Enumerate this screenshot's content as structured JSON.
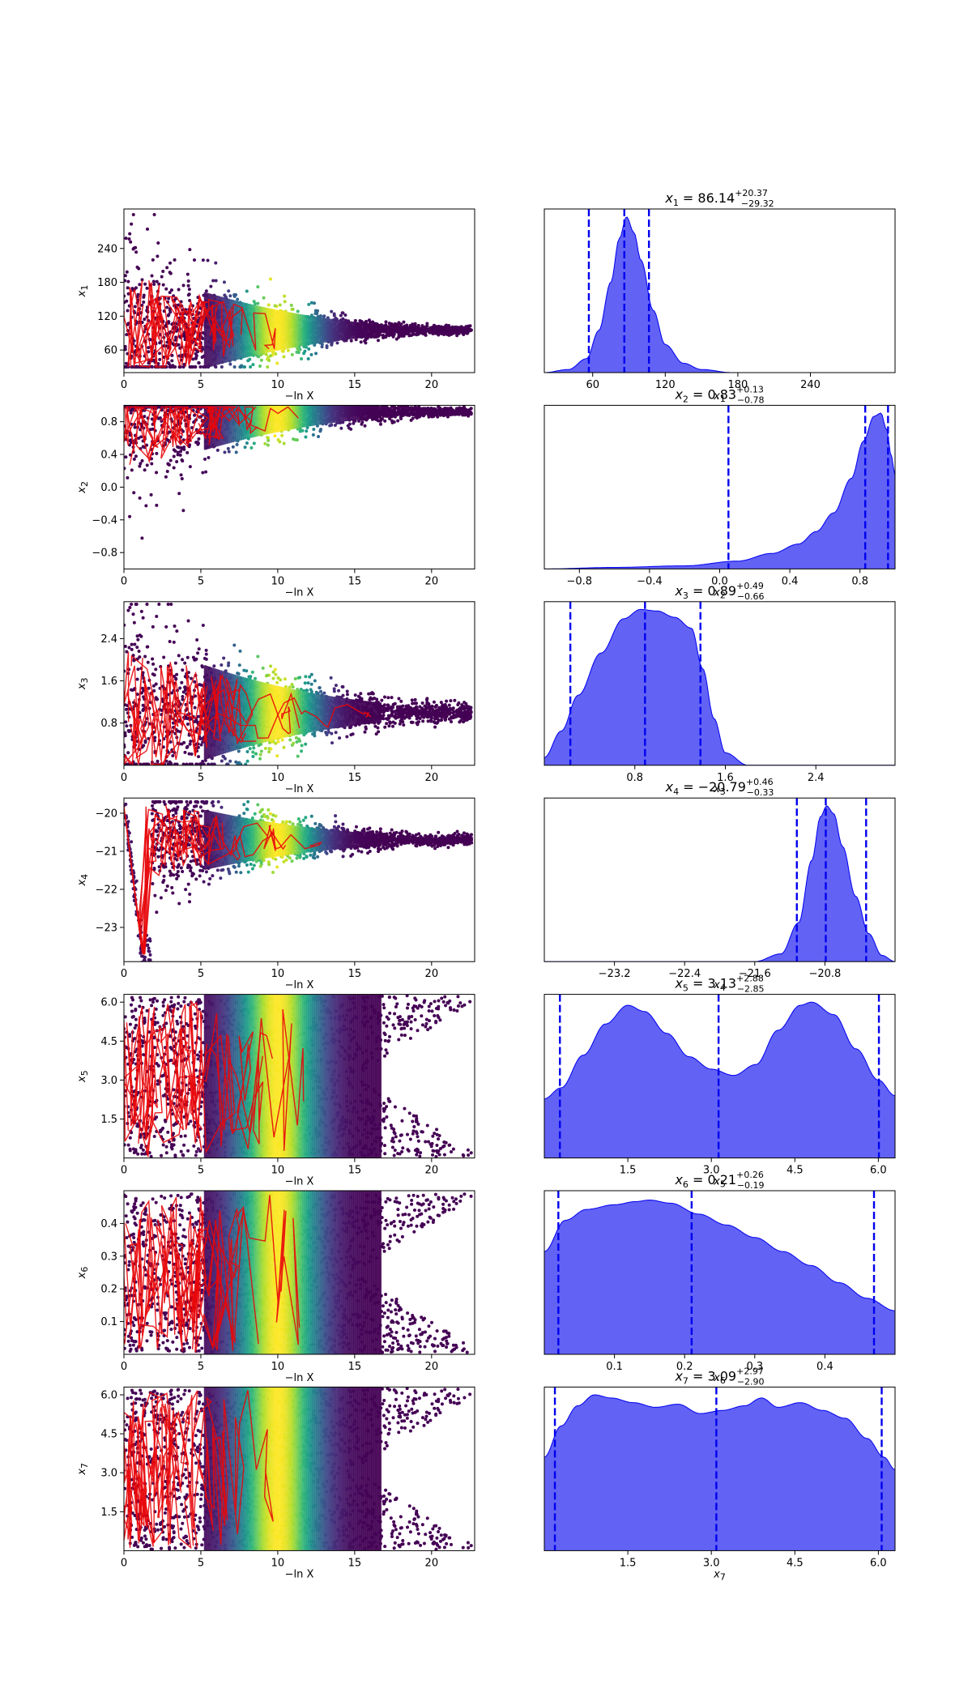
{
  "chart_data": [
    {
      "type": "scatter",
      "panel": "trace",
      "row": 1,
      "xlabel": "−ln X",
      "ylabel": "x1",
      "ylabel_base": "x",
      "ylabel_sub": "1",
      "xlim": [
        0,
        22.8
      ],
      "ylim": [
        20,
        310
      ],
      "xticks": [
        "0",
        "5",
        "10",
        "15",
        "20"
      ],
      "xtick_values": [
        0,
        5,
        10,
        15,
        20
      ],
      "yticks": [
        "60",
        "120",
        "180",
        "240"
      ],
      "ytick_values": [
        60,
        120,
        180,
        240
      ],
      "center": 95,
      "spread_start": 145,
      "spread_end": 6,
      "clip": [
        30,
        300
      ]
    },
    {
      "type": "area",
      "panel": "posterior",
      "row": 1,
      "param": "x1",
      "title": {
        "prefix": "x",
        "sub": "1",
        "eq": " = 86.14",
        "sup": "+20.37",
        "subscript": "−29.32"
      },
      "xlabel_base": "x",
      "xlabel_sub": "1",
      "xlim": [
        20,
        310
      ],
      "xticks": [
        "60",
        "120",
        "180",
        "240"
      ],
      "xtick_values": [
        60,
        120,
        180,
        240
      ],
      "median": 86.14,
      "quantiles": [
        56.82,
        86.14,
        106.51
      ],
      "density": {
        "x": [
          20,
          40,
          55,
          65,
          75,
          82,
          88,
          94,
          100,
          110,
          120,
          135,
          150,
          175,
          310
        ],
        "y": [
          0,
          0.02,
          0.09,
          0.27,
          0.58,
          0.86,
          1.0,
          0.9,
          0.72,
          0.4,
          0.18,
          0.06,
          0.02,
          0,
          0
        ]
      }
    },
    {
      "type": "scatter",
      "panel": "trace",
      "row": 2,
      "xlabel": "−ln X",
      "ylabel": "x2",
      "ylabel_base": "x",
      "ylabel_sub": "2",
      "xlim": [
        0,
        22.8
      ],
      "ylim": [
        -1,
        1
      ],
      "xticks": [
        "0",
        "5",
        "10",
        "15",
        "20"
      ],
      "xtick_values": [
        0,
        5,
        10,
        15,
        20
      ],
      "yticks": [
        "−0.8",
        "−0.4",
        "0.0",
        "0.4",
        "0.8"
      ],
      "ytick_values": [
        -0.8,
        -0.4,
        0,
        0.4,
        0.8
      ],
      "center": 0.92,
      "spread_start": 1.0,
      "spread_end": 0.04,
      "clip": [
        -0.98,
        0.98
      ]
    },
    {
      "type": "area",
      "panel": "posterior",
      "row": 2,
      "param": "x2",
      "title": {
        "prefix": "x",
        "sub": "2",
        "eq": " = 0.83",
        "sup": "+0.13",
        "subscript": "−0.78"
      },
      "xlabel_base": "x",
      "xlabel_sub": "2",
      "xlim": [
        -1,
        1
      ],
      "xticks": [
        "−0.8",
        "−0.4",
        "0.0",
        "0.4",
        "0.8"
      ],
      "xtick_values": [
        -0.8,
        -0.4,
        0,
        0.4,
        0.8
      ],
      "median": 0.83,
      "quantiles": [
        0.05,
        0.83,
        0.96
      ],
      "density": {
        "x": [
          -1,
          -0.6,
          -0.2,
          0.1,
          0.3,
          0.45,
          0.55,
          0.65,
          0.75,
          0.82,
          0.88,
          0.92,
          0.95,
          0.98,
          1.0
        ],
        "y": [
          0,
          0.01,
          0.02,
          0.05,
          0.1,
          0.16,
          0.24,
          0.36,
          0.58,
          0.82,
          0.98,
          1.0,
          0.9,
          0.72,
          0.6
        ]
      }
    },
    {
      "type": "scatter",
      "panel": "trace",
      "row": 3,
      "xlabel": "−ln X",
      "ylabel": "x3",
      "ylabel_base": "x",
      "ylabel_sub": "3",
      "xlim": [
        0,
        22.8
      ],
      "ylim": [
        0,
        3.1
      ],
      "xticks": [
        "0",
        "5",
        "10",
        "15",
        "20"
      ],
      "xtick_values": [
        0,
        5,
        10,
        15,
        20
      ],
      "yticks": [
        "0.8",
        "1.6",
        "2.4"
      ],
      "ytick_values": [
        0.8,
        1.6,
        2.4
      ],
      "center": 1.0,
      "spread_start": 1.8,
      "spread_end": 0.15,
      "clip": [
        0.02,
        3.05
      ]
    },
    {
      "type": "area",
      "panel": "posterior",
      "row": 3,
      "param": "x3",
      "title": {
        "prefix": "x",
        "sub": "3",
        "eq": " = 0.89",
        "sup": "+0.49",
        "subscript": "−0.66"
      },
      "xlabel_base": "x",
      "xlabel_sub": "3",
      "xlim": [
        0,
        3.1
      ],
      "xticks": [
        "0.8",
        "1.6",
        "2.4"
      ],
      "xtick_values": [
        0.8,
        1.6,
        2.4
      ],
      "median": 0.89,
      "quantiles": [
        0.23,
        0.89,
        1.38
      ],
      "density": {
        "x": [
          0,
          0.15,
          0.3,
          0.5,
          0.7,
          0.85,
          1.0,
          1.15,
          1.3,
          1.4,
          1.5,
          1.6,
          1.8,
          3.1
        ],
        "y": [
          0.05,
          0.22,
          0.45,
          0.72,
          0.94,
          1.0,
          0.99,
          0.95,
          0.88,
          0.62,
          0.3,
          0.08,
          0,
          0
        ]
      }
    },
    {
      "type": "scatter",
      "panel": "trace",
      "row": 4,
      "xlabel": "−ln X",
      "ylabel": "x4",
      "ylabel_base": "x",
      "ylabel_sub": "4",
      "xlim": [
        0,
        22.8
      ],
      "ylim": [
        -23.9,
        -19.6
      ],
      "xticks": [
        "0",
        "5",
        "10",
        "15",
        "20"
      ],
      "xtick_values": [
        0,
        5,
        10,
        15,
        20
      ],
      "yticks": [
        "−23",
        "−22",
        "−21",
        "−20"
      ],
      "ytick_values": [
        -23,
        -22,
        -21,
        -20
      ],
      "center": -20.7,
      "spread_start": 1.6,
      "spread_end": 0.12,
      "clip": [
        -23.85,
        -19.7
      ]
    },
    {
      "type": "area",
      "panel": "posterior",
      "row": 4,
      "param": "x4",
      "title": {
        "prefix": "x",
        "sub": "4",
        "eq": " = −20.79",
        "sup": "+0.46",
        "subscript": "−0.33"
      },
      "xlabel_base": "x",
      "xlabel_sub": "4",
      "xlim": [
        -24,
        -20.0
      ],
      "xticks": [
        "−23.2",
        "−22.4",
        "−21.6",
        "−20.8"
      ],
      "xtick_values": [
        -23.2,
        -22.4,
        -21.6,
        -20.8
      ],
      "median": -20.79,
      "quantiles": [
        -21.12,
        -20.79,
        -20.33
      ],
      "density": {
        "x": [
          -24,
          -21.6,
          -21.3,
          -21.1,
          -20.95,
          -20.85,
          -20.78,
          -20.7,
          -20.6,
          -20.45,
          -20.3,
          -20.15,
          -20.0
        ],
        "y": [
          0,
          0,
          0.05,
          0.25,
          0.65,
          0.93,
          1.0,
          0.95,
          0.74,
          0.42,
          0.18,
          0.04,
          0
        ]
      }
    },
    {
      "type": "scatter",
      "panel": "trace",
      "row": 5,
      "xlabel": "−ln X",
      "ylabel": "x5",
      "ylabel_base": "x",
      "ylabel_sub": "5",
      "xlim": [
        0,
        22.8
      ],
      "ylim": [
        0,
        6.3
      ],
      "xticks": [
        "0",
        "5",
        "10",
        "15",
        "20"
      ],
      "xtick_values": [
        0,
        5,
        10,
        15,
        20
      ],
      "yticks": [
        "1.5",
        "3.0",
        "4.5",
        "6.0"
      ],
      "ytick_values": [
        1.5,
        3.0,
        4.5,
        6.0
      ],
      "center": 3.14,
      "spread_start": 3.0,
      "spread_end": 3.0,
      "clip": [
        0.05,
        6.25
      ]
    },
    {
      "type": "area",
      "panel": "posterior",
      "row": 5,
      "param": "x5",
      "title": {
        "prefix": "x",
        "sub": "5",
        "eq": " = 3.13",
        "sup": "+2.88",
        "subscript": "−2.85"
      },
      "xlabel_base": "x",
      "xlabel_sub": "5",
      "xlim": [
        0,
        6.3
      ],
      "xticks": [
        "1.5",
        "3.0",
        "4.5",
        "6.0"
      ],
      "xtick_values": [
        1.5,
        3.0,
        4.5,
        6.0
      ],
      "median": 3.13,
      "quantiles": [
        0.28,
        3.13,
        6.01
      ],
      "density": {
        "x": [
          0,
          0.3,
          0.7,
          1.1,
          1.5,
          1.8,
          2.2,
          2.6,
          3.0,
          3.4,
          3.8,
          4.2,
          4.6,
          4.8,
          5.2,
          5.6,
          6.0,
          6.3
        ],
        "y": [
          0.38,
          0.45,
          0.66,
          0.86,
          0.98,
          0.94,
          0.8,
          0.65,
          0.57,
          0.53,
          0.6,
          0.82,
          0.98,
          1.0,
          0.92,
          0.7,
          0.5,
          0.4
        ]
      }
    },
    {
      "type": "scatter",
      "panel": "trace",
      "row": 6,
      "xlabel": "−ln X",
      "ylabel": "x6",
      "ylabel_base": "x",
      "ylabel_sub": "6",
      "xlim": [
        0,
        22.8
      ],
      "ylim": [
        0,
        0.5
      ],
      "xticks": [
        "0",
        "5",
        "10",
        "15",
        "20"
      ],
      "xtick_values": [
        0,
        5,
        10,
        15,
        20
      ],
      "yticks": [
        "0.1",
        "0.2",
        "0.3",
        "0.4"
      ],
      "ytick_values": [
        0.1,
        0.2,
        0.3,
        0.4
      ],
      "center": 0.25,
      "spread_start": 0.24,
      "spread_end": 0.24,
      "clip": [
        0.005,
        0.49
      ]
    },
    {
      "type": "area",
      "panel": "posterior",
      "row": 6,
      "param": "x6",
      "title": {
        "prefix": "x",
        "sub": "6",
        "eq": " = 0.21",
        "sup": "+0.26",
        "subscript": "−0.19"
      },
      "xlabel_base": "x",
      "xlabel_sub": "6",
      "xlim": [
        0,
        0.5
      ],
      "xticks": [
        "0.1",
        "0.2",
        "0.3",
        "0.4"
      ],
      "xtick_values": [
        0.1,
        0.2,
        0.3,
        0.4
      ],
      "median": 0.21,
      "quantiles": [
        0.02,
        0.21,
        0.47
      ],
      "density": {
        "x": [
          0,
          0.03,
          0.06,
          0.1,
          0.13,
          0.15,
          0.18,
          0.22,
          0.26,
          0.3,
          0.34,
          0.38,
          0.42,
          0.46,
          0.5
        ],
        "y": [
          0.66,
          0.86,
          0.93,
          0.96,
          0.98,
          0.99,
          0.97,
          0.9,
          0.83,
          0.75,
          0.66,
          0.57,
          0.46,
          0.36,
          0.28
        ]
      }
    },
    {
      "type": "scatter",
      "panel": "trace",
      "row": 7,
      "xlabel": "−ln X",
      "ylabel": "x7",
      "ylabel_base": "x",
      "ylabel_sub": "7",
      "xlim": [
        0,
        22.8
      ],
      "ylim": [
        0,
        6.3
      ],
      "xticks": [
        "0",
        "5",
        "10",
        "15",
        "20"
      ],
      "xtick_values": [
        0,
        5,
        10,
        15,
        20
      ],
      "yticks": [
        "1.5",
        "3.0",
        "4.5",
        "6.0"
      ],
      "ytick_values": [
        1.5,
        3.0,
        4.5,
        6.0
      ],
      "center": 3.1,
      "spread_start": 3.05,
      "spread_end": 3.05,
      "clip": [
        0.05,
        6.25
      ]
    },
    {
      "type": "area",
      "panel": "posterior",
      "row": 7,
      "param": "x7",
      "title": {
        "prefix": "x",
        "sub": "7",
        "eq": " = 3.09",
        "sup": "+2.97",
        "subscript": "−2.90"
      },
      "xlabel_base": "x",
      "xlabel_sub": "7",
      "xlim": [
        0,
        6.3
      ],
      "xticks": [
        "1.5",
        "3.0",
        "4.5",
        "6.0"
      ],
      "xtick_values": [
        1.5,
        3.0,
        4.5,
        6.0
      ],
      "median": 3.09,
      "quantiles": [
        0.19,
        3.09,
        6.06
      ],
      "density": {
        "x": [
          0,
          0.3,
          0.6,
          0.9,
          1.2,
          1.6,
          2.0,
          2.4,
          2.8,
          3.2,
          3.6,
          3.9,
          4.2,
          4.6,
          5.0,
          5.4,
          5.8,
          6.1,
          6.3
        ],
        "y": [
          0.6,
          0.8,
          0.93,
          1.0,
          0.98,
          0.95,
          0.92,
          0.94,
          0.88,
          0.9,
          0.93,
          0.98,
          0.92,
          0.95,
          0.9,
          0.85,
          0.72,
          0.6,
          0.52
        ]
      }
    }
  ],
  "colors": {
    "posterior_fill": "#6262f5",
    "posterior_line": "#0000f0",
    "quantile_line": "#0000ee",
    "trace_line": "#e8070a",
    "viridis_dark": "#440154",
    "viridis_yellow": "#fde725"
  }
}
